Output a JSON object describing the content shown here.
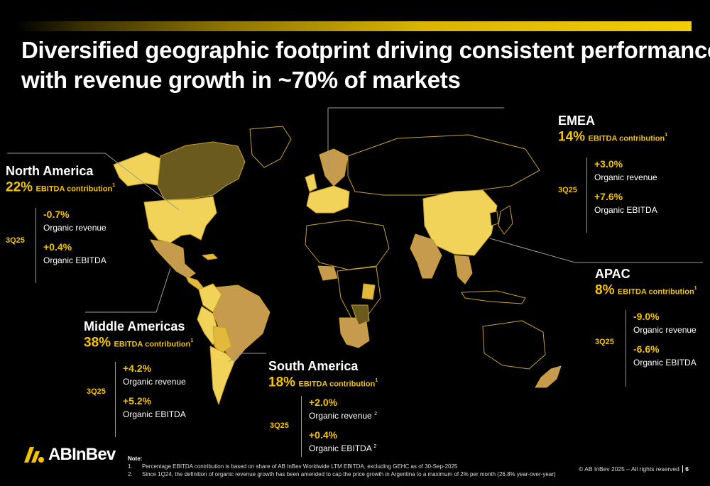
{
  "title": {
    "line1": "Diversified geographic footprint driving consistent performance",
    "line2": "with revenue growth in ~70% of markets"
  },
  "colors": {
    "accent": "#f5c400",
    "map_yellow_light": "#f2d35a",
    "map_yellow": "#e2b93b",
    "map_olive": "#6b5a1e",
    "map_tan": "#c69b4d",
    "map_dark": "#000000",
    "border": "#c9a227"
  },
  "regions": {
    "north_america": {
      "name": "North America",
      "pct": "22%",
      "label": "EBITDA contribution",
      "note_ref": "1",
      "period": "3Q25",
      "revenue_value": "-0.7%",
      "revenue_label": "Organic revenue",
      "revenue_ref": "",
      "ebitda_value": "+0.4%",
      "ebitda_label": "Organic EBITDA",
      "ebitda_ref": ""
    },
    "middle_americas": {
      "name": "Middle Americas",
      "pct": "38%",
      "label": "EBITDA contribution",
      "note_ref": "1",
      "period": "3Q25",
      "revenue_value": "+4.2%",
      "revenue_label": "Organic revenue",
      "revenue_ref": "",
      "ebitda_value": "+5.2%",
      "ebitda_label": "Organic EBITDA",
      "ebitda_ref": ""
    },
    "south_america": {
      "name": "South America",
      "pct": "18%",
      "label": "EBITDA contribution",
      "note_ref": "1",
      "period": "3Q25",
      "revenue_value": "+2.0%",
      "revenue_label": "Organic revenue",
      "revenue_ref": "2",
      "ebitda_value": "+0.4%",
      "ebitda_label": "Organic EBITDA",
      "ebitda_ref": "2"
    },
    "emea": {
      "name": "EMEA",
      "pct": "14%",
      "label": "EBITDA contribution",
      "note_ref": "1",
      "period": "3Q25",
      "revenue_value": "+3.0%",
      "revenue_label": "Organic revenue",
      "revenue_ref": "",
      "ebitda_value": "+7.6%",
      "ebitda_label": "Organic EBITDA",
      "ebitda_ref": ""
    },
    "apac": {
      "name": "APAC",
      "pct": "8%",
      "label": "EBITDA contribution",
      "note_ref": "1",
      "period": "3Q25",
      "revenue_value": "-9.0%",
      "revenue_label": "Organic revenue",
      "revenue_ref": "",
      "ebitda_value": "-6.6%",
      "ebitda_label": "Organic EBITDA",
      "ebitda_ref": ""
    }
  },
  "logo": {
    "brand": "ABInBev",
    "icon": "abinbev-logo-icon"
  },
  "notes": {
    "heading": "Note:",
    "items": [
      {
        "num": "1.",
        "text": "Percentage EBITDA contribution is based on share of AB InBev Worldwide LTM EBITDA, excluding GEHC as of 30-Sep-2025"
      },
      {
        "num": "2.",
        "text": "Since 1Q24, the definition of organic revenue growth has been amended to cap the price growth in Argentina to a maximum of 2% per month (26.8% year-over-year)"
      }
    ]
  },
  "footer": {
    "copyright": "© AB InBev 2025 – All rights reserved",
    "page": "6"
  }
}
